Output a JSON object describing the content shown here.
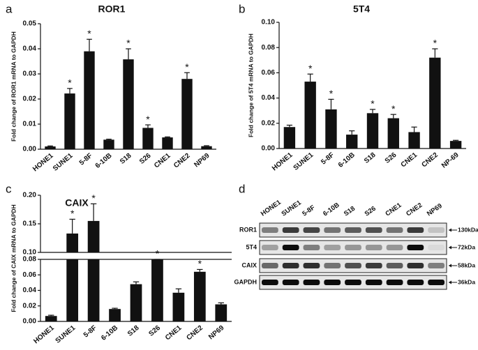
{
  "chart_data": [
    {
      "type": "bar",
      "panel": "a",
      "title": "ROR1",
      "y_label": "Fold change of ROR1 mRNA to GAPDH",
      "categories": [
        "HONE1",
        "SUNE1",
        "5-8F",
        "6-10B",
        "S18",
        "S26",
        "CNE1",
        "CNE2",
        "NP69"
      ],
      "values": [
        0.0011,
        0.0222,
        0.039,
        0.0038,
        0.0358,
        0.0085,
        0.0047,
        0.028,
        0.0012
      ],
      "errors": [
        0.0002,
        0.002,
        0.0048,
        0.0002,
        0.0042,
        0.0012,
        0.0002,
        0.0025,
        0.0002
      ],
      "annotations": [
        null,
        "*",
        "*",
        null,
        "*",
        "*",
        null,
        "*",
        null
      ],
      "color": "#111111",
      "ylim": [
        0,
        0.05
      ],
      "yticks": [
        {
          "value": 0,
          "label": "0.00"
        },
        0.01,
        0.02,
        0.03,
        0.04,
        0.05
      ]
    },
    {
      "type": "bar",
      "panel": "b",
      "title": "5T4",
      "y_label": "Fold change of 5T4 mRNA to GAPDH",
      "categories": [
        "HONE1",
        "SUNE1",
        "5-8F",
        "6-10B",
        "S18",
        "S26",
        "CNE1",
        "CNE2",
        "NP-69"
      ],
      "values": [
        0.017,
        0.053,
        0.031,
        0.011,
        0.028,
        0.024,
        0.013,
        0.072,
        0.006
      ],
      "errors": [
        0.0015,
        0.006,
        0.008,
        0.003,
        0.003,
        0.003,
        0.004,
        0.007,
        0.0005
      ],
      "annotations": [
        null,
        "*",
        "*",
        null,
        "*",
        "*",
        null,
        "*",
        null
      ],
      "color": "#111111",
      "ylim": [
        0,
        0.1
      ],
      "yticks": [
        {
          "value": 0,
          "label": "0.00"
        },
        0.02,
        0.04,
        0.06,
        0.08,
        {
          "value": 0.1,
          "label": "0.10"
        }
      ]
    },
    {
      "type": "bar",
      "panel": "c",
      "title": "CAIX",
      "y_label": "Fold change of CAIX mRNA to GAPDH",
      "categories": [
        "HONE1",
        "SUNE1",
        "5-8F",
        "6-10B",
        "S18",
        "S26",
        "CNE1",
        "CNE2",
        "NP69"
      ],
      "values": [
        0.007,
        0.133,
        0.155,
        0.016,
        0.048,
        0.08,
        0.037,
        0.064,
        0.022
      ],
      "errors": [
        0.001,
        0.025,
        0.03,
        0.001,
        0.003,
        0.001,
        0.005,
        0.003,
        0.002
      ],
      "annotations": [
        null,
        "*",
        "*",
        null,
        null,
        "*",
        null,
        "*",
        null
      ],
      "color": "#111111",
      "ylim": [
        0,
        0.2
      ],
      "ybreak": [
        0.08,
        0.1
      ],
      "yticks": [
        {
          "value": 0,
          "label": "0.00"
        },
        0.02,
        0.04,
        0.06,
        0.08,
        {
          "value": 0.1,
          "label": "0.10"
        },
        0.15,
        {
          "value": 0.2,
          "label": "0.20"
        }
      ]
    }
  ],
  "blot": {
    "panel": "d",
    "lanes": [
      "HONE1",
      "SUNE1",
      "5-8F",
      "6-10B",
      "S18",
      "S26",
      "CNE1",
      "CNE2",
      "NP69"
    ],
    "rows": [
      "ROR1",
      "5T4",
      "CAIX",
      "GAPDH"
    ],
    "sizes": [
      "130kDa",
      "72kDa",
      "58kDa",
      "36kDa"
    ]
  }
}
